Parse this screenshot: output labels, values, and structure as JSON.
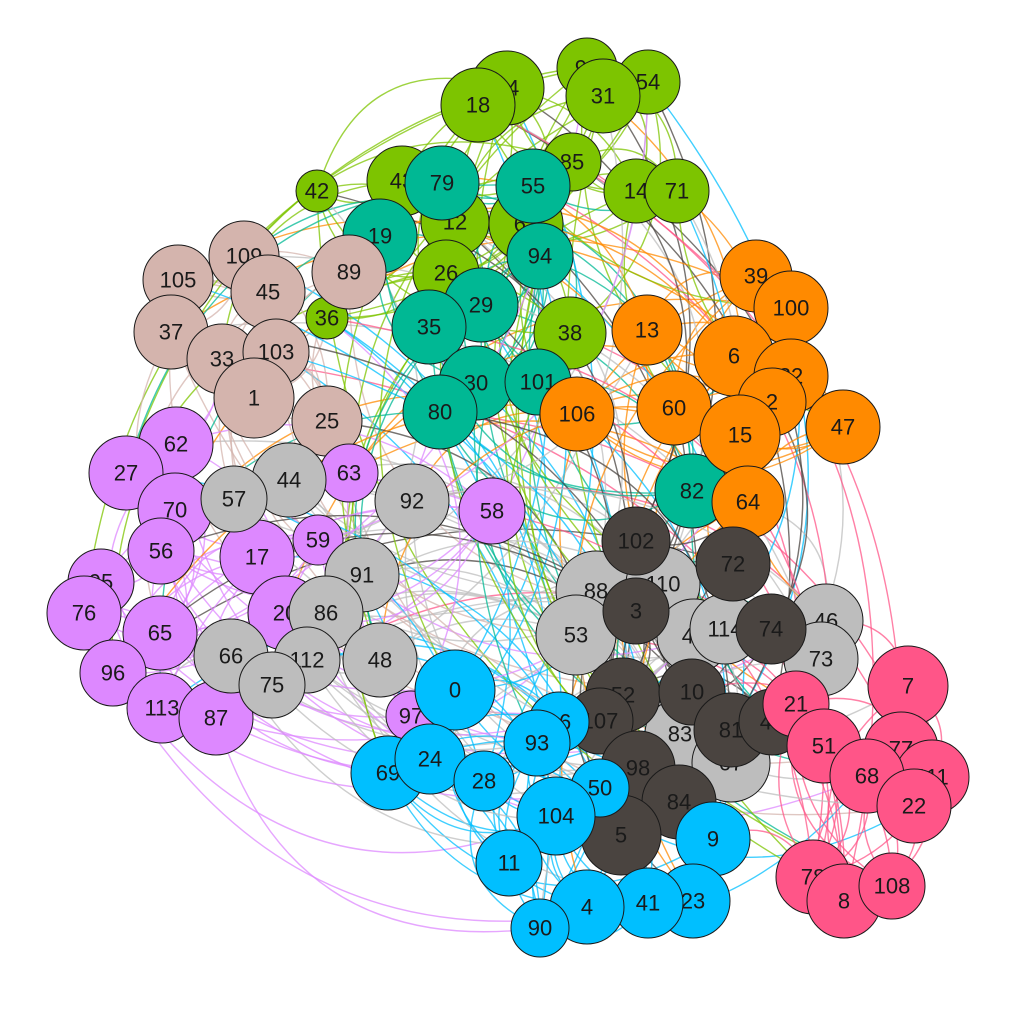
{
  "graph": {
    "groups": {
      "green": "#7dc400",
      "teal": "#00b894",
      "orange": "#ff8a00",
      "rose": "#d4b4ad",
      "violet": "#dd88ff",
      "gray": "#bdbdbd",
      "dark": "#4a4440",
      "blue": "#00bfff",
      "pink": "#ff5588"
    },
    "nodes": [
      {
        "id": "99",
        "g": "green"
      },
      {
        "id": "54",
        "g": "green"
      },
      {
        "id": "34",
        "g": "green"
      },
      {
        "id": "18",
        "g": "green"
      },
      {
        "id": "31",
        "g": "green"
      },
      {
        "id": "85",
        "g": "green"
      },
      {
        "id": "43",
        "g": "green"
      },
      {
        "id": "42",
        "g": "green"
      },
      {
        "id": "14",
        "g": "green"
      },
      {
        "id": "71",
        "g": "green"
      },
      {
        "id": "12",
        "g": "green"
      },
      {
        "id": "61",
        "g": "green"
      },
      {
        "id": "26",
        "g": "green"
      },
      {
        "id": "36",
        "g": "green"
      },
      {
        "id": "38",
        "g": "green"
      },
      {
        "id": "79",
        "g": "teal"
      },
      {
        "id": "55",
        "g": "teal"
      },
      {
        "id": "19",
        "g": "teal"
      },
      {
        "id": "94",
        "g": "teal"
      },
      {
        "id": "29",
        "g": "teal"
      },
      {
        "id": "35",
        "g": "teal"
      },
      {
        "id": "30",
        "g": "teal"
      },
      {
        "id": "101",
        "g": "teal"
      },
      {
        "id": "80",
        "g": "teal"
      },
      {
        "id": "82",
        "g": "teal"
      },
      {
        "id": "39",
        "g": "orange"
      },
      {
        "id": "100",
        "g": "orange"
      },
      {
        "id": "13",
        "g": "orange"
      },
      {
        "id": "6",
        "g": "orange"
      },
      {
        "id": "32",
        "g": "orange"
      },
      {
        "id": "2",
        "g": "orange"
      },
      {
        "id": "106",
        "g": "orange"
      },
      {
        "id": "60",
        "g": "orange"
      },
      {
        "id": "15",
        "g": "orange"
      },
      {
        "id": "47",
        "g": "orange"
      },
      {
        "id": "64",
        "g": "orange"
      },
      {
        "id": "109",
        "g": "rose"
      },
      {
        "id": "105",
        "g": "rose"
      },
      {
        "id": "45",
        "g": "rose"
      },
      {
        "id": "89",
        "g": "rose"
      },
      {
        "id": "37",
        "g": "rose"
      },
      {
        "id": "33",
        "g": "rose"
      },
      {
        "id": "103",
        "g": "rose"
      },
      {
        "id": "1",
        "g": "rose"
      },
      {
        "id": "25",
        "g": "rose"
      },
      {
        "id": "62",
        "g": "violet"
      },
      {
        "id": "27",
        "g": "violet"
      },
      {
        "id": "70",
        "g": "violet"
      },
      {
        "id": "63",
        "g": "violet"
      },
      {
        "id": "56",
        "g": "violet"
      },
      {
        "id": "17",
        "g": "violet"
      },
      {
        "id": "59",
        "g": "violet"
      },
      {
        "id": "58",
        "g": "violet"
      },
      {
        "id": "95",
        "g": "violet"
      },
      {
        "id": "76",
        "g": "violet"
      },
      {
        "id": "65",
        "g": "violet"
      },
      {
        "id": "20",
        "g": "violet"
      },
      {
        "id": "96",
        "g": "violet"
      },
      {
        "id": "113",
        "g": "violet"
      },
      {
        "id": "87",
        "g": "violet"
      },
      {
        "id": "97",
        "g": "violet"
      },
      {
        "id": "44",
        "g": "gray"
      },
      {
        "id": "57",
        "g": "gray"
      },
      {
        "id": "92",
        "g": "gray"
      },
      {
        "id": "91",
        "g": "gray"
      },
      {
        "id": "86",
        "g": "gray"
      },
      {
        "id": "66",
        "g": "gray"
      },
      {
        "id": "112",
        "g": "gray"
      },
      {
        "id": "48",
        "g": "gray"
      },
      {
        "id": "75",
        "g": "gray"
      },
      {
        "id": "88",
        "g": "gray"
      },
      {
        "id": "110",
        "g": "gray"
      },
      {
        "id": "53",
        "g": "gray"
      },
      {
        "id": "49",
        "g": "gray"
      },
      {
        "id": "114",
        "g": "gray"
      },
      {
        "id": "46",
        "g": "gray"
      },
      {
        "id": "73",
        "g": "gray"
      },
      {
        "id": "83",
        "g": "gray"
      },
      {
        "id": "67",
        "g": "gray"
      },
      {
        "id": "102",
        "g": "dark"
      },
      {
        "id": "72",
        "g": "dark"
      },
      {
        "id": "3",
        "g": "dark"
      },
      {
        "id": "74",
        "g": "dark"
      },
      {
        "id": "52",
        "g": "dark"
      },
      {
        "id": "10",
        "g": "dark"
      },
      {
        "id": "107",
        "g": "dark"
      },
      {
        "id": "81",
        "g": "dark"
      },
      {
        "id": "40",
        "g": "dark"
      },
      {
        "id": "98",
        "g": "dark"
      },
      {
        "id": "84",
        "g": "dark"
      },
      {
        "id": "5",
        "g": "dark"
      },
      {
        "id": "0",
        "g": "blue"
      },
      {
        "id": "16",
        "g": "blue"
      },
      {
        "id": "93",
        "g": "blue"
      },
      {
        "id": "69",
        "g": "blue"
      },
      {
        "id": "24",
        "g": "blue"
      },
      {
        "id": "28",
        "g": "blue"
      },
      {
        "id": "50",
        "g": "blue"
      },
      {
        "id": "104",
        "g": "blue"
      },
      {
        "id": "11",
        "g": "blue"
      },
      {
        "id": "9",
        "g": "blue"
      },
      {
        "id": "23",
        "g": "blue"
      },
      {
        "id": "41",
        "g": "blue"
      },
      {
        "id": "4",
        "g": "blue"
      },
      {
        "id": "90",
        "g": "blue"
      },
      {
        "id": "7",
        "g": "pink"
      },
      {
        "id": "21",
        "g": "pink"
      },
      {
        "id": "51",
        "g": "pink"
      },
      {
        "id": "77",
        "g": "pink"
      },
      {
        "id": "111",
        "g": "pink"
      },
      {
        "id": "68",
        "g": "pink"
      },
      {
        "id": "22",
        "g": "pink"
      },
      {
        "id": "78",
        "g": "pink"
      },
      {
        "id": "8",
        "g": "pink"
      },
      {
        "id": "108",
        "g": "pink"
      }
    ]
  }
}
